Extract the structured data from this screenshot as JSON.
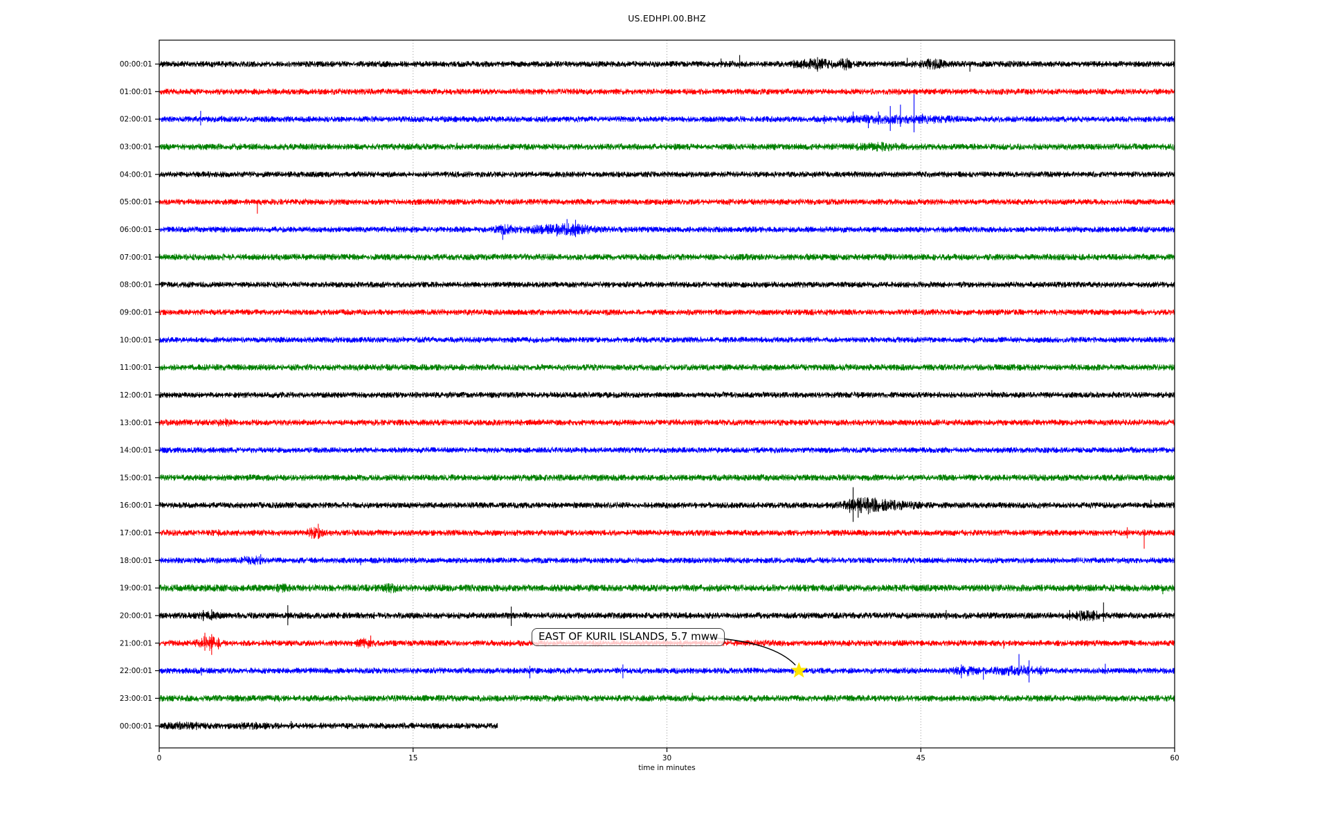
{
  "chart_data": {
    "type": "line",
    "subtype": "seismogram-helicorder-dayplot",
    "title": "US.EDHPI.00.BHZ",
    "xlabel": "time in minutes",
    "xlim": [
      0,
      60
    ],
    "x_ticks": [
      0,
      15,
      30,
      45,
      60
    ],
    "grid_minutes": [
      15,
      30,
      45
    ],
    "grid_on": true,
    "grid_color": "#9a9a9a",
    "spine_color": "#000000",
    "color_cycle": [
      "#000000",
      "#ff0000",
      "#0000ff",
      "#008000"
    ],
    "rows": [
      {
        "label": "00:00:01",
        "color": "#000000",
        "start": 0,
        "end": 60,
        "noise_amp": 4.5,
        "bumps": [
          [
            38.8,
            0.9,
            4
          ],
          [
            40.5,
            0.25,
            5
          ],
          [
            45.7,
            0.5,
            4
          ]
        ],
        "spikes": [
          [
            33.2,
            8,
            5
          ],
          [
            34.3,
            13,
            6
          ],
          [
            37.5,
            6,
            6
          ],
          [
            38.9,
            10,
            11
          ],
          [
            39.2,
            8,
            6
          ],
          [
            44.2,
            9,
            4
          ],
          [
            45.4,
            7,
            7
          ],
          [
            46.1,
            7,
            5
          ],
          [
            47.9,
            4,
            11
          ],
          [
            50.5,
            5,
            4
          ]
        ]
      },
      {
        "label": "01:00:01",
        "color": "#ff0000",
        "start": 0,
        "end": 60,
        "noise_amp": 4.4,
        "bumps": [],
        "spikes": []
      },
      {
        "label": "02:00:01",
        "color": "#0000ff",
        "start": 0,
        "end": 60,
        "noise_amp": 4.4,
        "bumps": [
          [
            42.8,
            1.5,
            3
          ],
          [
            45.8,
            0.8,
            2
          ]
        ],
        "spikes": [
          [
            2.45,
            12,
            9
          ],
          [
            3.7,
            5,
            4
          ],
          [
            39.3,
            6,
            7
          ],
          [
            41.0,
            11,
            6
          ],
          [
            41.9,
            5,
            13
          ],
          [
            42.5,
            11,
            8
          ],
          [
            43.2,
            19,
            17
          ],
          [
            43.8,
            21,
            11
          ],
          [
            44.6,
            36,
            19
          ],
          [
            45.1,
            8,
            6
          ]
        ]
      },
      {
        "label": "03:00:01",
        "color": "#008000",
        "start": 0,
        "end": 60,
        "noise_amp": 4.8,
        "bumps": [
          [
            42.3,
            0.9,
            2.5
          ]
        ],
        "spikes": [
          [
            17.6,
            6,
            3
          ]
        ]
      },
      {
        "label": "04:00:01",
        "color": "#000000",
        "start": 0,
        "end": 60,
        "noise_amp": 4.4,
        "bumps": [],
        "spikes": []
      },
      {
        "label": "05:00:01",
        "color": "#ff0000",
        "start": 0,
        "end": 60,
        "noise_amp": 4.4,
        "bumps": [],
        "spikes": [
          [
            5.8,
            3,
            17
          ]
        ]
      },
      {
        "label": "06:00:01",
        "color": "#0000ff",
        "start": 0,
        "end": 60,
        "noise_amp": 4.4,
        "bumps": [
          [
            20.4,
            0.35,
            4
          ],
          [
            22.3,
            0.8,
            2
          ],
          [
            24.2,
            1.0,
            5
          ]
        ],
        "spikes": [
          [
            19.9,
            6,
            5
          ],
          [
            20.3,
            5,
            15
          ],
          [
            23.5,
            8,
            10
          ],
          [
            24.1,
            15,
            8
          ],
          [
            24.6,
            14,
            11
          ],
          [
            25.0,
            7,
            7
          ]
        ]
      },
      {
        "label": "07:00:01",
        "color": "#008000",
        "start": 0,
        "end": 60,
        "noise_amp": 4.8,
        "bumps": [],
        "spikes": []
      },
      {
        "label": "08:00:01",
        "color": "#000000",
        "start": 0,
        "end": 60,
        "noise_amp": 4.4,
        "bumps": [],
        "spikes": []
      },
      {
        "label": "09:00:01",
        "color": "#ff0000",
        "start": 0,
        "end": 60,
        "noise_amp": 4.4,
        "bumps": [],
        "spikes": []
      },
      {
        "label": "10:00:01",
        "color": "#0000ff",
        "start": 0,
        "end": 60,
        "noise_amp": 4.3,
        "bumps": [],
        "spikes": []
      },
      {
        "label": "11:00:01",
        "color": "#008000",
        "start": 0,
        "end": 60,
        "noise_amp": 4.8,
        "bumps": [],
        "spikes": []
      },
      {
        "label": "12:00:01",
        "color": "#000000",
        "start": 0,
        "end": 60,
        "noise_amp": 4.4,
        "bumps": [],
        "spikes": [
          [
            49.2,
            7,
            3
          ]
        ]
      },
      {
        "label": "13:00:01",
        "color": "#ff0000",
        "start": 0,
        "end": 60,
        "noise_amp": 4.5,
        "bumps": [
          [
            3.8,
            0.3,
            2.5
          ]
        ],
        "spikes": []
      },
      {
        "label": "14:00:01",
        "color": "#0000ff",
        "start": 0,
        "end": 60,
        "noise_amp": 4.3,
        "bumps": [],
        "spikes": []
      },
      {
        "label": "15:00:01",
        "color": "#008000",
        "start": 0,
        "end": 60,
        "noise_amp": 4.8,
        "bumps": [],
        "spikes": []
      },
      {
        "label": "16:00:01",
        "color": "#000000",
        "start": 0,
        "end": 60,
        "noise_amp": 4.5,
        "bumps": [
          [
            41.6,
            0.8,
            7
          ],
          [
            43.6,
            0.9,
            3
          ]
        ],
        "spikes": [
          [
            40.8,
            9,
            11
          ],
          [
            41.0,
            26,
            24
          ],
          [
            41.3,
            11,
            18
          ],
          [
            41.9,
            9,
            13
          ],
          [
            42.3,
            11,
            9
          ],
          [
            42.9,
            9,
            7
          ],
          [
            58.6,
            8,
            3
          ]
        ]
      },
      {
        "label": "17:00:01",
        "color": "#ff0000",
        "start": 0,
        "end": 60,
        "noise_amp": 4.5,
        "bumps": [
          [
            9.2,
            0.3,
            5
          ]
        ],
        "spikes": [
          [
            3.5,
            5,
            5
          ],
          [
            9.4,
            13,
            9
          ],
          [
            57.2,
            8,
            8
          ],
          [
            58.2,
            5,
            23
          ]
        ]
      },
      {
        "label": "18:00:01",
        "color": "#0000ff",
        "start": 0,
        "end": 60,
        "noise_amp": 4.3,
        "bumps": [
          [
            5.5,
            0.4,
            3.5
          ]
        ],
        "spikes": [
          [
            6.0,
            9,
            6
          ],
          [
            11.9,
            3,
            7
          ]
        ]
      },
      {
        "label": "19:00:01",
        "color": "#008000",
        "start": 0,
        "end": 60,
        "noise_amp": 5.2,
        "bumps": [
          [
            7.2,
            0.3,
            2
          ],
          [
            13.7,
            0.25,
            3
          ]
        ],
        "spikes": [
          [
            59.3,
            3,
            9
          ]
        ]
      },
      {
        "label": "20:00:01",
        "color": "#000000",
        "start": 0,
        "end": 60,
        "noise_amp": 4.7,
        "bumps": [
          [
            2.9,
            0.4,
            2
          ],
          [
            54.8,
            0.6,
            4
          ]
        ],
        "spikes": [
          [
            2.6,
            8,
            8
          ],
          [
            3.1,
            9,
            7
          ],
          [
            7.6,
            15,
            14
          ],
          [
            12.7,
            5,
            5
          ],
          [
            20.8,
            13,
            15
          ],
          [
            46.5,
            8,
            6
          ],
          [
            53.8,
            8,
            7
          ],
          [
            55.8,
            19,
            9
          ]
        ]
      },
      {
        "label": "21:00:01",
        "color": "#ff0000",
        "start": 0,
        "end": 60,
        "noise_amp": 4.5,
        "bumps": [
          [
            2.9,
            0.4,
            7
          ],
          [
            12.2,
            0.3,
            4
          ]
        ],
        "spikes": [
          [
            2.7,
            15,
            11
          ],
          [
            3.1,
            13,
            17
          ],
          [
            3.5,
            8,
            9
          ],
          [
            12.5,
            11,
            5
          ],
          [
            49.9,
            3,
            8
          ]
        ]
      },
      {
        "label": "22:00:01",
        "color": "#0000ff",
        "start": 0,
        "end": 60,
        "noise_amp": 4.4,
        "bumps": [
          [
            47.6,
            0.5,
            4
          ],
          [
            50.6,
            1.0,
            4
          ]
        ],
        "spikes": [
          [
            2.5,
            5,
            7
          ],
          [
            21.9,
            7,
            11
          ],
          [
            27.4,
            9,
            11
          ],
          [
            47.4,
            9,
            11
          ],
          [
            48.7,
            5,
            13
          ],
          [
            50.8,
            24,
            7
          ],
          [
            51.4,
            15,
            17
          ],
          [
            52.1,
            7,
            7
          ],
          [
            55.9,
            10,
            5
          ]
        ]
      },
      {
        "label": "23:00:01",
        "color": "#008000",
        "start": 0,
        "end": 60,
        "noise_amp": 4.8,
        "bumps": [],
        "spikes": [
          [
            31.5,
            8,
            3
          ],
          [
            41.9,
            5,
            3
          ]
        ]
      },
      {
        "label": "00:00:01",
        "color": "#000000",
        "start": 0,
        "end": 20.0,
        "noise_amp": 4.6,
        "bumps": [
          [
            1.5,
            0.8,
            1.5
          ],
          [
            5.5,
            0.6,
            1.5
          ]
        ],
        "spikes": [
          [
            2.2,
            6,
            6
          ],
          [
            7.8,
            7,
            5
          ]
        ]
      }
    ],
    "annotation": {
      "text": "EAST OF KURIL ISLANDS, 5.7 mww",
      "target_row": 22,
      "target_row_label": "22:00:01",
      "target_minute": 37.8,
      "marker": "star",
      "marker_color": "#ffe600"
    }
  }
}
